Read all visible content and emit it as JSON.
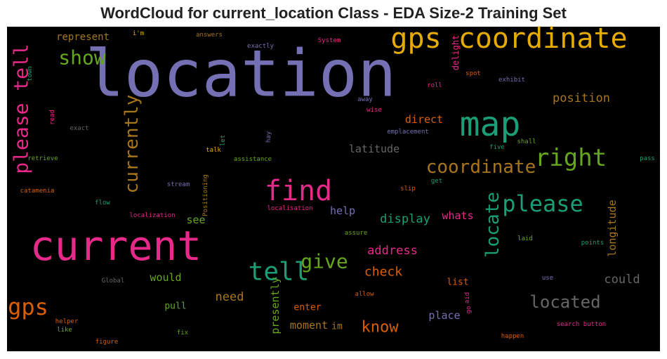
{
  "chart_data": {
    "type": "wordcloud",
    "title": "WordCloud for current_location Class - EDA Size-2 Training Set",
    "background": "#000000",
    "words": [
      {
        "text": "location",
        "color": "#7570b3"
      },
      {
        "text": "current",
        "color": "#e7298a"
      },
      {
        "text": "gps coordinate",
        "color": "#e6ab02"
      },
      {
        "text": "map",
        "color": "#1b9e77"
      },
      {
        "text": "please tell",
        "color": "#e7298a"
      },
      {
        "text": "show",
        "color": "#66a61e"
      },
      {
        "text": "currently",
        "color": "#a6761d"
      },
      {
        "text": "find",
        "color": "#e7298a"
      },
      {
        "text": "right",
        "color": "#66a61e"
      },
      {
        "text": "coordinate",
        "color": "#a6761d"
      },
      {
        "text": "please",
        "color": "#1b9e77"
      },
      {
        "text": "locate",
        "color": "#1b9e77"
      },
      {
        "text": "tell",
        "color": "#1b9e77"
      },
      {
        "text": "give",
        "color": "#66a61e"
      },
      {
        "text": "gps",
        "color": "#d95f02"
      },
      {
        "text": "located",
        "color": "#666666"
      },
      {
        "text": "know",
        "color": "#d95f02"
      },
      {
        "text": "check",
        "color": "#d95f02"
      },
      {
        "text": "address",
        "color": "#e7298a"
      },
      {
        "text": "display",
        "color": "#1b9e77"
      },
      {
        "text": "whats",
        "color": "#e7298a"
      },
      {
        "text": "help",
        "color": "#7570b3"
      },
      {
        "text": "latitude",
        "color": "#666666"
      },
      {
        "text": "direct",
        "color": "#d95f02"
      },
      {
        "text": "position",
        "color": "#a6761d"
      },
      {
        "text": "longitude",
        "color": "#a6761d"
      },
      {
        "text": "could",
        "color": "#666666"
      },
      {
        "text": "need",
        "color": "#a6761d"
      },
      {
        "text": "moment",
        "color": "#a6761d"
      },
      {
        "text": "im",
        "color": "#a6761d"
      },
      {
        "text": "presently",
        "color": "#66a61e"
      },
      {
        "text": "enter",
        "color": "#d95f02"
      },
      {
        "text": "place",
        "color": "#7570b3"
      },
      {
        "text": "list",
        "color": "#d95f02"
      },
      {
        "text": "would",
        "color": "#66a61e"
      },
      {
        "text": "pull",
        "color": "#66a61e"
      },
      {
        "text": "see",
        "color": "#66a61e"
      },
      {
        "text": "represent",
        "color": "#a6761d"
      },
      {
        "text": "delight",
        "color": "#e7298a"
      },
      {
        "text": "i'm",
        "color": "#e6ab02"
      },
      {
        "text": "answers",
        "color": "#a6761d"
      },
      {
        "text": "System",
        "color": "#e7298a"
      },
      {
        "text": "exactly",
        "color": "#7570b3"
      },
      {
        "text": "spot",
        "color": "#d95f02"
      },
      {
        "text": "exhibit",
        "color": "#7570b3"
      },
      {
        "text": "roll",
        "color": "#e7298a"
      },
      {
        "text": "away",
        "color": "#7570b3"
      },
      {
        "text": "wise",
        "color": "#e7298a"
      },
      {
        "text": "emplacement",
        "color": "#7570b3"
      },
      {
        "text": "five",
        "color": "#1b9e77"
      },
      {
        "text": "shall",
        "color": "#66a61e"
      },
      {
        "text": "pass",
        "color": "#1b9e77"
      },
      {
        "text": "read",
        "color": "#e7298a"
      },
      {
        "text": "town",
        "color": "#1b9e77"
      },
      {
        "text": "exact",
        "color": "#666666"
      },
      {
        "text": "retrieve",
        "color": "#66a61e"
      },
      {
        "text": "talk",
        "color": "#e6ab02"
      },
      {
        "text": "let",
        "color": "#1b9e77"
      },
      {
        "text": "hay",
        "color": "#7570b3"
      },
      {
        "text": "assistance",
        "color": "#66a61e"
      },
      {
        "text": "get",
        "color": "#1b9e77"
      },
      {
        "text": "slip",
        "color": "#d95f02"
      },
      {
        "text": "stream",
        "color": "#7570b3"
      },
      {
        "text": "catamenia",
        "color": "#d95f02"
      },
      {
        "text": "flow",
        "color": "#1b9e77"
      },
      {
        "text": "Positioning",
        "color": "#a6761d"
      },
      {
        "text": "localization",
        "color": "#e7298a"
      },
      {
        "text": "localisation",
        "color": "#e7298a"
      },
      {
        "text": "assure",
        "color": "#66a61e"
      },
      {
        "text": "laid",
        "color": "#66a61e"
      },
      {
        "text": "points",
        "color": "#1b9e77"
      },
      {
        "text": "use",
        "color": "#7570b3"
      },
      {
        "text": "Global",
        "color": "#666666"
      },
      {
        "text": "allow",
        "color": "#d95f02"
      },
      {
        "text": "aid",
        "color": "#e7298a"
      },
      {
        "text": "go",
        "color": "#e7298a"
      },
      {
        "text": "helper",
        "color": "#d95f02"
      },
      {
        "text": "like",
        "color": "#66a61e"
      },
      {
        "text": "fix",
        "color": "#66a61e"
      },
      {
        "text": "search button",
        "color": "#e7298a"
      },
      {
        "text": "figure",
        "color": "#d95f02"
      },
      {
        "text": "happen",
        "color": "#d95f02"
      }
    ]
  }
}
